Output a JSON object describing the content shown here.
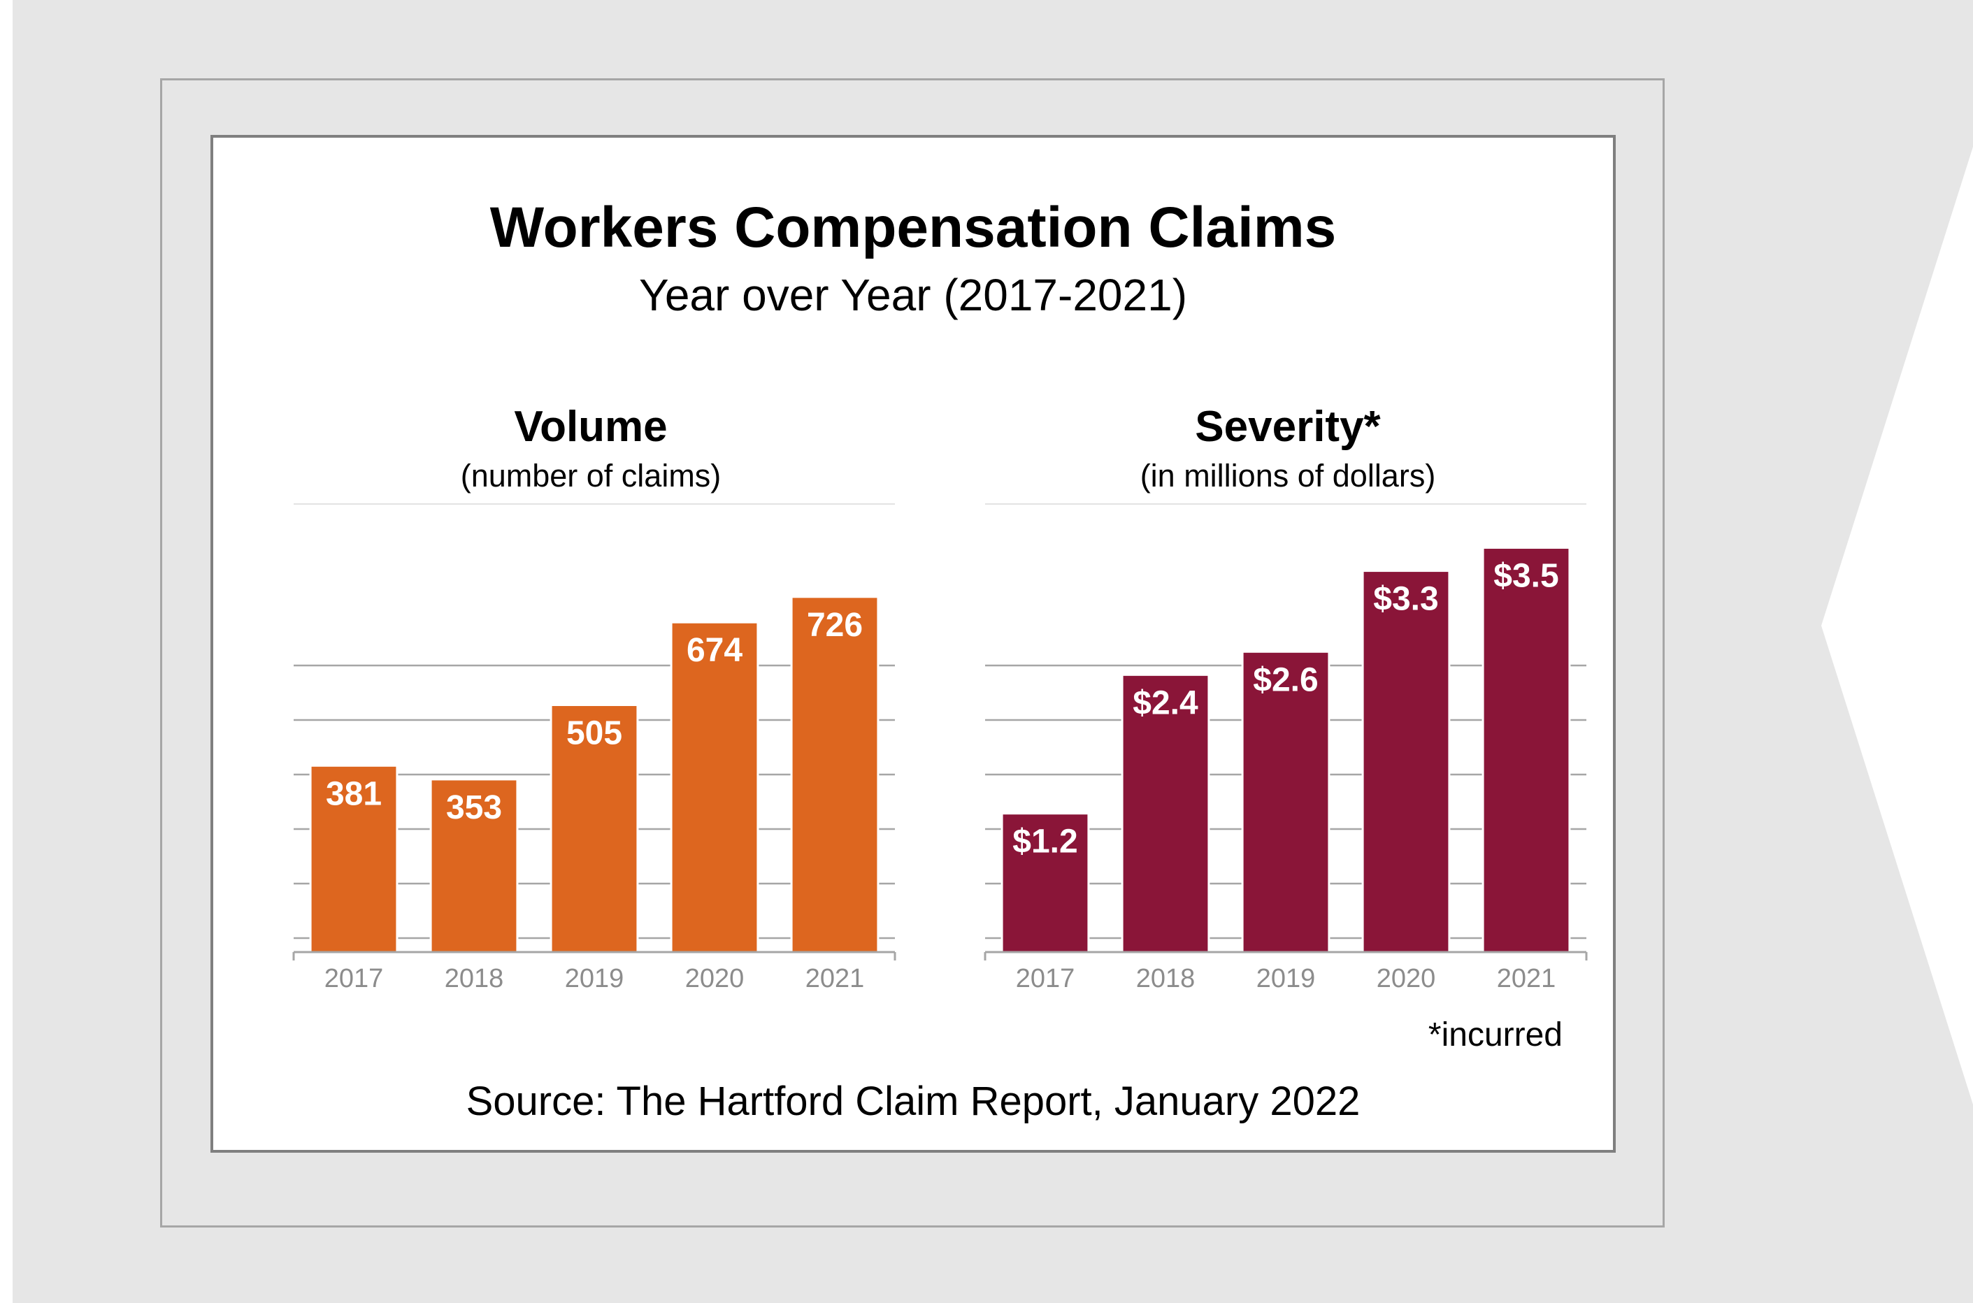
{
  "title": "Workers Compensation Claims",
  "subtitle": "Year over Year (2017-2021)",
  "source": "Source: The Hartford Claim Report, January 2022",
  "footnote": "*incurred",
  "colors": {
    "volume": "#dd661f",
    "severity": "#8a1538",
    "grid": "#a6a6a6",
    "tick_label": "#8c8c8c"
  },
  "chart_data": [
    {
      "type": "bar",
      "title": "Volume",
      "subtitle": "(number of claims)",
      "categories": [
        "2017",
        "2018",
        "2019",
        "2020",
        "2021"
      ],
      "values": [
        381,
        353,
        505,
        674,
        726
      ],
      "data_labels": [
        "381",
        "353",
        "505",
        "674",
        "726"
      ],
      "ylim": [
        0,
        850
      ],
      "grid": true,
      "color": "#dd661f"
    },
    {
      "type": "bar",
      "title": "Severity*",
      "subtitle": "(in millions of dollars)",
      "categories": [
        "2017",
        "2018",
        "2019",
        "2020",
        "2021"
      ],
      "values": [
        1.2,
        2.4,
        2.6,
        3.3,
        3.5
      ],
      "data_labels": [
        "$1.2",
        "$2.4",
        "$2.6",
        "$3.3",
        "$3.5"
      ],
      "ylim": [
        0,
        3.6
      ],
      "grid": true,
      "color": "#8a1538"
    }
  ]
}
